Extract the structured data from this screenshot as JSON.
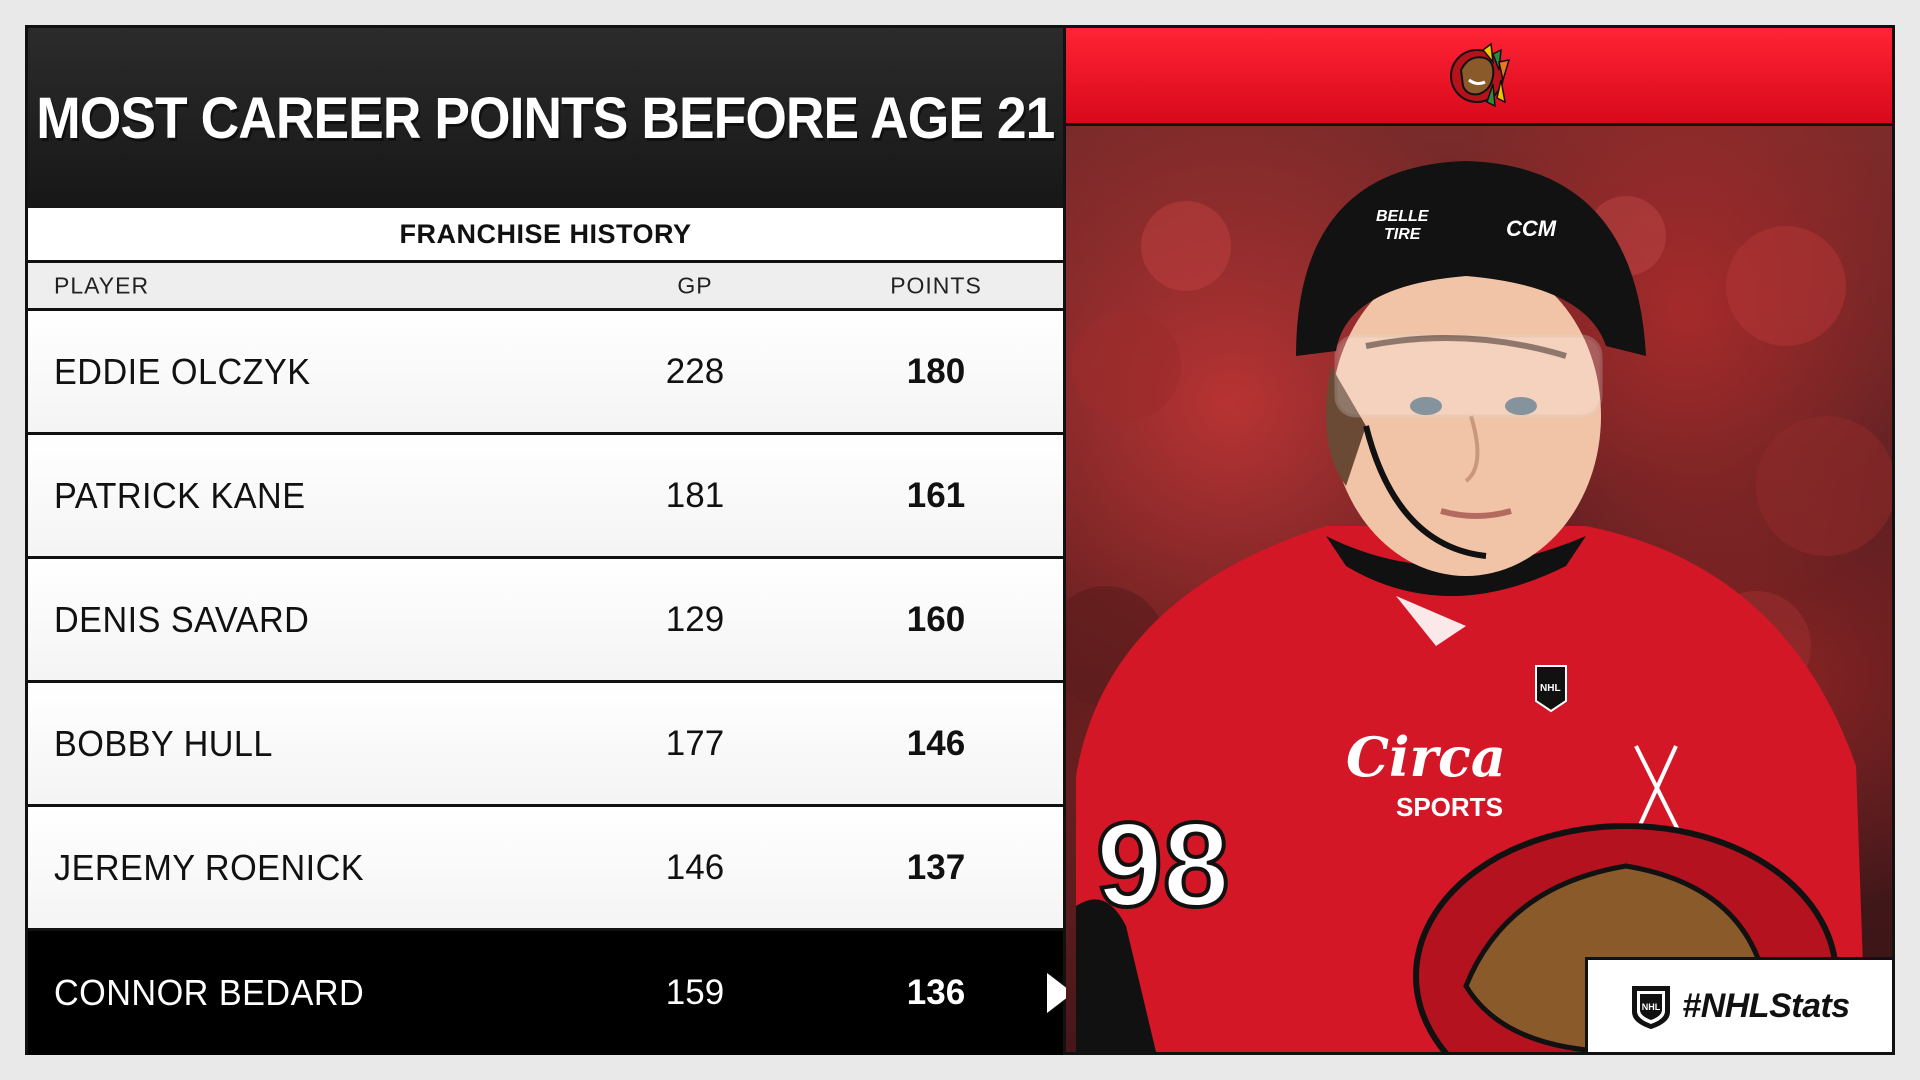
{
  "title": "MOST CAREER POINTS BEFORE AGE 21",
  "subtitle": "FRANCHISE HISTORY",
  "columns": {
    "player": "PLAYER",
    "gp": "GP",
    "points": "POINTS"
  },
  "rows": [
    {
      "player": "EDDIE OLCZYK",
      "gp": "228",
      "points": "180"
    },
    {
      "player": "PATRICK KANE",
      "gp": "181",
      "points": "161"
    },
    {
      "player": "DENIS SAVARD",
      "gp": "129",
      "points": "160"
    },
    {
      "player": "BOBBY HULL",
      "gp": "177",
      "points": "146"
    },
    {
      "player": "JEREMY ROENICK",
      "gp": "146",
      "points": "137"
    },
    {
      "player": "CONNOR BEDARD",
      "gp": "159",
      "points": "136"
    }
  ],
  "photo": {
    "helmet_brand": "CCM",
    "helmet_sticker_line1": "BELLE",
    "helmet_sticker_line2": "TIRE",
    "jersey_number": "98",
    "sponsor_line1": "Circa",
    "sponsor_line2": "SPORTS",
    "nhl_badge": "NHL"
  },
  "hashtag": "#NHLStats",
  "colors": {
    "team_red": "#e3101f",
    "dark": "#111111",
    "highlight_row": "#000000"
  },
  "icons": {
    "team_logo": "blackhawks-logo-icon",
    "league_logo": "nhl-shield-icon",
    "pointer": "pointer-triangle-icon"
  }
}
